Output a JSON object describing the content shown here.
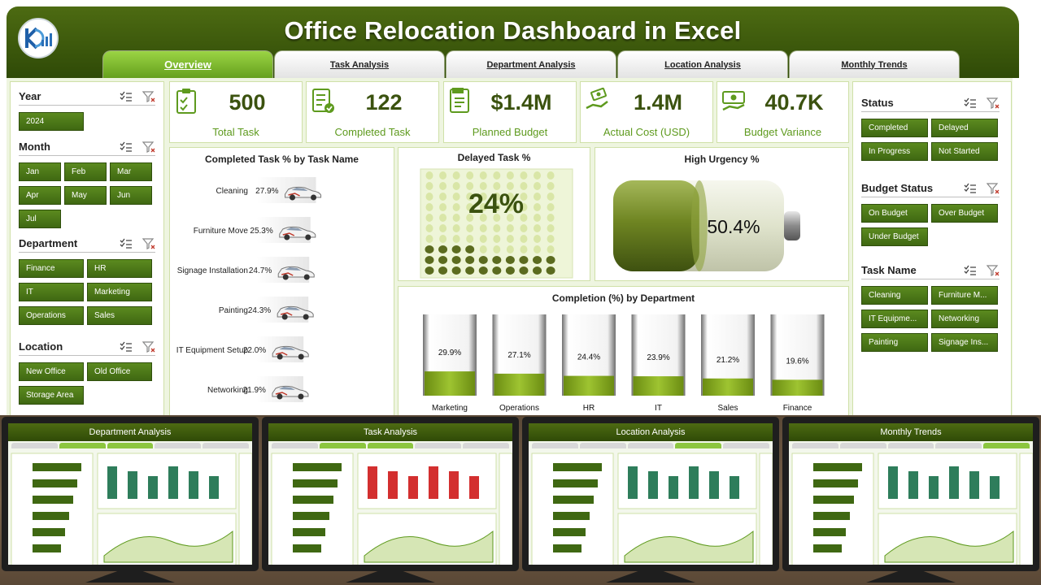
{
  "header": {
    "title": "Office Relocation Dashboard in Excel",
    "tabs": [
      "Overview",
      "Task Analysis",
      "Department Analysis",
      "Location Analysis",
      "Monthly Trends"
    ],
    "active_tab": "Overview"
  },
  "left_slicers": {
    "year": {
      "label": "Year",
      "items": [
        "2024"
      ]
    },
    "month": {
      "label": "Month",
      "items": [
        "Jan",
        "Feb",
        "Mar",
        "Apr",
        "May",
        "Jun",
        "Jul"
      ]
    },
    "department": {
      "label": "Department",
      "items": [
        "Finance",
        "HR",
        "IT",
        "Marketing",
        "Operations",
        "Sales"
      ]
    },
    "location": {
      "label": "Location",
      "items": [
        "New Office",
        "Old Office",
        "Storage Area"
      ]
    }
  },
  "right_slicers": {
    "status": {
      "label": "Status",
      "items": [
        "Completed",
        "Delayed",
        "In Progress",
        "Not Started"
      ]
    },
    "budget_status": {
      "label": "Budget Status",
      "items": [
        "On Budget",
        "Over Budget",
        "Under Budget"
      ]
    },
    "task_name": {
      "label": "Task Name",
      "items": [
        "Cleaning",
        "Furniture M...",
        "IT Equipme...",
        "Networking",
        "Painting",
        "Signage Ins..."
      ]
    }
  },
  "kpis": [
    {
      "value": "500",
      "label": "Total Task",
      "icon": "clipboard-icon"
    },
    {
      "value": "122",
      "label": "Completed Task",
      "icon": "checklist-icon"
    },
    {
      "value": "$1.4M",
      "label": "Planned Budget",
      "icon": "plan-icon"
    },
    {
      "value": "1.4M",
      "label": "Actual Cost (USD)",
      "icon": "money-hand-icon"
    },
    {
      "value": "40.7K",
      "label": "Budget Variance",
      "icon": "cash-icon"
    }
  ],
  "chart_data": [
    {
      "type": "bar",
      "title": "Completed Task % by Task Name",
      "categories": [
        "Cleaning",
        "Furniture Move",
        "Signage Installation",
        "Painting",
        "IT Equipment Setup",
        "Networking"
      ],
      "values": [
        27.9,
        25.3,
        24.7,
        24.3,
        22.0,
        21.9
      ],
      "labels": [
        "27.9%",
        "25.3%",
        "24.7%",
        "24.3%",
        "22.0%",
        "21.9%"
      ],
      "xlim": [
        0,
        100
      ]
    },
    {
      "type": "waffle",
      "title": "Delayed Task %",
      "value": 24,
      "label": "24%"
    },
    {
      "type": "gauge",
      "title": "High Urgency %",
      "value": 50.4,
      "label": "50.4%"
    },
    {
      "type": "bar",
      "title": "Completion (%) by Department",
      "categories": [
        "Marketing",
        "Operations",
        "HR",
        "IT",
        "Sales",
        "Finance"
      ],
      "values": [
        29.9,
        27.1,
        24.4,
        23.9,
        21.2,
        19.6
      ],
      "labels": [
        "29.9%",
        "27.1%",
        "24.4%",
        "23.9%",
        "21.2%",
        "19.6%"
      ],
      "ylim": [
        0,
        100
      ]
    }
  ],
  "thumbnails": [
    "Department Analysis",
    "Task Analysis",
    "Location Analysis",
    "Monthly Trends"
  ],
  "colors": {
    "dark_green": "#3b520f",
    "accent_green": "#8cc63f",
    "header": "#2f4a07"
  }
}
